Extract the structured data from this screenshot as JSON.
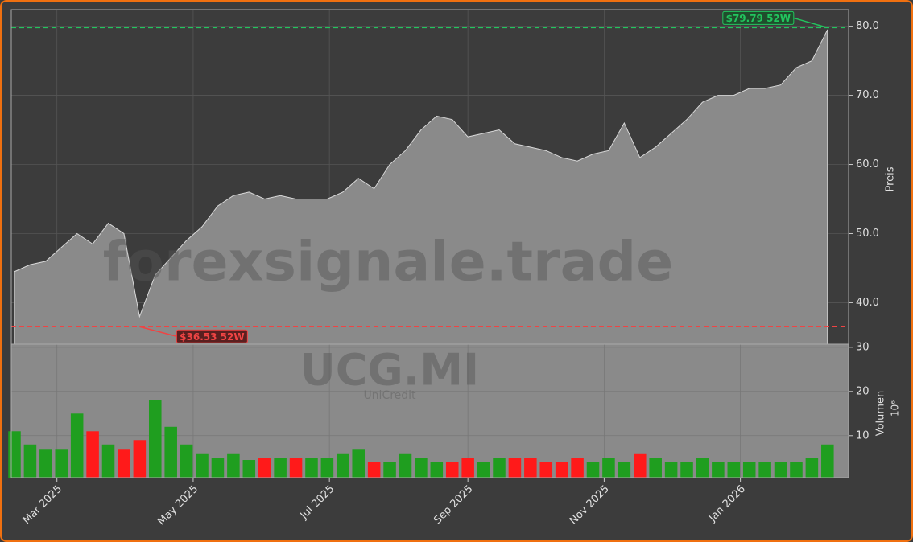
{
  "chart_data": {
    "type": "area",
    "watermark": "forexsignale.trade",
    "ticker": "UCG.MI",
    "company": "UniCredit",
    "ylabel": "Preis",
    "y2label": "Volumen",
    "y2scale_label": "10⁶",
    "x": [
      "2025-02-10",
      "2025-02-17",
      "2025-02-24",
      "2025-03-03",
      "2025-03-10",
      "2025-03-17",
      "2025-03-24",
      "2025-03-31",
      "2025-04-07",
      "2025-04-14",
      "2025-04-21",
      "2025-04-28",
      "2025-05-05",
      "2025-05-12",
      "2025-05-19",
      "2025-05-26",
      "2025-06-02",
      "2025-06-09",
      "2025-06-16",
      "2025-06-23",
      "2025-06-30",
      "2025-07-07",
      "2025-07-14",
      "2025-07-21",
      "2025-07-28",
      "2025-08-04",
      "2025-08-11",
      "2025-08-18",
      "2025-08-25",
      "2025-09-01",
      "2025-09-08",
      "2025-09-15",
      "2025-09-22",
      "2025-09-29",
      "2025-10-06",
      "2025-10-13",
      "2025-10-20",
      "2025-10-27",
      "2025-11-03",
      "2025-11-10",
      "2025-11-17",
      "2025-11-24",
      "2025-12-01",
      "2025-12-08",
      "2025-12-15",
      "2025-12-22",
      "2025-12-29",
      "2026-01-05",
      "2026-01-12",
      "2026-01-19",
      "2026-01-26",
      "2026-02-02",
      "2026-02-09"
    ],
    "series": [
      {
        "name": "Close",
        "color": "#8a8a8a",
        "values": [
          44.5,
          45.5,
          46,
          48,
          50,
          48.5,
          51.5,
          50,
          38,
          44,
          46.5,
          49,
          51,
          54,
          55.5,
          56,
          55,
          55.5,
          55,
          55,
          55,
          56,
          58,
          56.5,
          60,
          62,
          65,
          67,
          66.5,
          64,
          64.5,
          65,
          63,
          62.5,
          62,
          61,
          60.5,
          61.5,
          62,
          66,
          61,
          62.5,
          64.5,
          66.5,
          69,
          70,
          70,
          71,
          71,
          71.5,
          74,
          75,
          79.5
        ]
      },
      {
        "name": "Volumen",
        "axis": "y2",
        "up_color": "#1f9e1f",
        "down_color": "#ff1a1a",
        "values": [
          11,
          8,
          7,
          7,
          15,
          11,
          8,
          7,
          9,
          18,
          12,
          8,
          6,
          5,
          6,
          4.5,
          5,
          5,
          5,
          5,
          5,
          6,
          7,
          4,
          4,
          6,
          5,
          4,
          4,
          5,
          4,
          5,
          5,
          5,
          4,
          4,
          5,
          4,
          5,
          4,
          6,
          5,
          4,
          4,
          5,
          4,
          4,
          4,
          4,
          4,
          4,
          5,
          8
        ]
      }
    ],
    "high": 79.79,
    "high_label": "$79.79 52W",
    "high_color": "#22c55e",
    "low": 36.53,
    "low_label": "$36.53 52W",
    "low_color": "#ef4444",
    "xlim": [
      "2025-02-10",
      "2026-02-17"
    ],
    "xticks": [
      {
        "value": "2025-03-01",
        "label": "Mar 2025"
      },
      {
        "value": "2025-05-01",
        "label": "May 2025"
      },
      {
        "value": "2025-07-01",
        "label": "Jul 2025"
      },
      {
        "value": "2025-09-01",
        "label": "Sep 2025"
      },
      {
        "value": "2025-11-01",
        "label": "Nov 2025"
      },
      {
        "value": "2026-01-01",
        "label": "Jan 2026"
      }
    ],
    "ylim": [
      34,
      82.4
    ],
    "yticks": [
      {
        "value": 40,
        "label": "40.0"
      },
      {
        "value": 50,
        "label": "50.0"
      },
      {
        "value": 60,
        "label": "60.0"
      },
      {
        "value": 70,
        "label": "70.0"
      },
      {
        "value": 80,
        "label": "80.0"
      }
    ],
    "y2lim": [
      0.5,
      30.7
    ],
    "y2ticks": [
      10,
      20,
      30
    ],
    "grid": true
  }
}
